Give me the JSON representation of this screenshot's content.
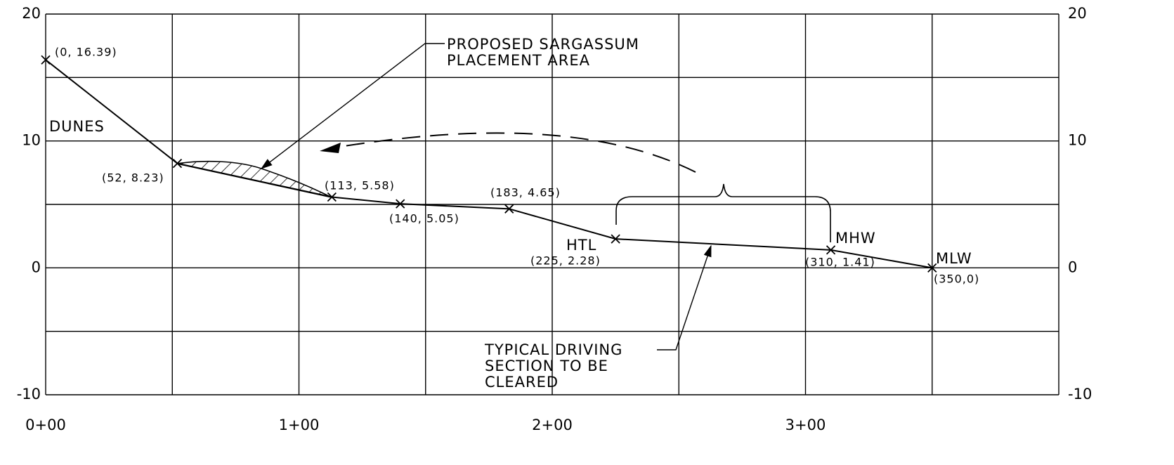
{
  "chart_data": {
    "type": "line",
    "x": [
      0,
      52,
      113,
      140,
      183,
      225,
      310,
      350
    ],
    "values": [
      16.39,
      8.23,
      5.58,
      5.05,
      4.65,
      2.28,
      1.41,
      0
    ],
    "value_labels": [
      "(0, 16.39)",
      "(52, 8.23)",
      "(113, 5.58)",
      "(140, 5.05)",
      "(183, 4.65)",
      "(225, 2.28)",
      "(310, 1.41)",
      "(350,0)"
    ],
    "color": "#000000",
    "xlim": [
      0,
      400
    ],
    "ylim": [
      -10,
      20
    ],
    "xticks": [
      {
        "value": 0,
        "label": "0+00"
      },
      {
        "value": 100,
        "label": "1+00"
      },
      {
        "value": 200,
        "label": "2+00"
      },
      {
        "value": 300,
        "label": "3+00"
      }
    ],
    "yticks": [
      -10,
      0,
      10,
      20
    ],
    "xgrid": [
      0,
      50,
      100,
      150,
      200,
      250,
      300,
      350,
      400
    ],
    "ygrid": [
      -10,
      -5,
      0,
      5,
      10,
      15,
      20
    ],
    "grid": true,
    "annotations": [
      {
        "text": [
          "DUNES"
        ]
      },
      {
        "text": [
          "PROPOSED SARGASSUM",
          "PLACEMENT AREA"
        ]
      },
      {
        "text": [
          "HTL"
        ]
      },
      {
        "text": [
          "MHW"
        ]
      },
      {
        "text": [
          "MLW"
        ]
      },
      {
        "text": [
          "TYPICAL DRIVING",
          "SECTION TO BE",
          "CLEARED"
        ]
      }
    ]
  }
}
